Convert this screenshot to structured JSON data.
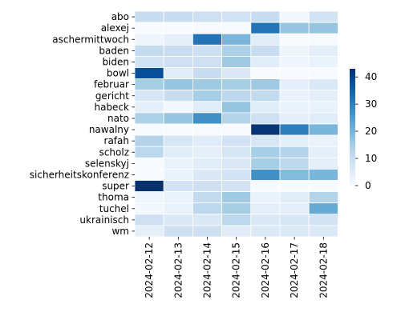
{
  "chart_data": {
    "type": "heatmap",
    "x": [
      "2024-02-12",
      "2024-02-13",
      "2024-02-14",
      "2024-02-15",
      "2024-02-16",
      "2024-02-17",
      "2024-02-18"
    ],
    "y": [
      "abo",
      "alexej",
      "aschermittwoch",
      "baden",
      "biden",
      "bowl",
      "februar",
      "gericht",
      "habeck",
      "nato",
      "nawalny",
      "rafah",
      "scholz",
      "selenskyj",
      "sicherheitskonferenz",
      "super",
      "thoma",
      "tuchel",
      "ukrainisch",
      "wm"
    ],
    "values": [
      [
        10,
        10,
        9,
        8,
        10,
        1,
        8
      ],
      [
        0,
        0,
        0,
        0,
        32,
        17,
        17
      ],
      [
        2,
        4,
        32,
        20,
        5,
        0,
        0
      ],
      [
        11,
        10,
        9,
        14,
        10,
        2,
        4
      ],
      [
        8,
        9,
        9,
        16,
        5,
        2,
        3
      ],
      [
        38,
        5,
        10,
        6,
        0,
        0,
        0
      ],
      [
        15,
        17,
        16,
        15,
        16,
        4,
        6
      ],
      [
        7,
        10,
        15,
        12,
        11,
        3,
        4
      ],
      [
        4,
        1,
        5,
        17,
        5,
        3,
        3
      ],
      [
        14,
        17,
        27,
        13,
        9,
        4,
        5
      ],
      [
        0,
        0,
        0,
        0,
        42,
        30,
        20
      ],
      [
        13,
        7,
        5,
        8,
        7,
        4,
        3
      ],
      [
        12,
        5,
        4,
        7,
        15,
        13,
        4
      ],
      [
        0,
        3,
        5,
        6,
        15,
        12,
        4
      ],
      [
        0,
        3,
        6,
        8,
        27,
        19,
        20
      ],
      [
        43,
        8,
        9,
        8,
        0,
        0,
        0
      ],
      [
        2,
        3,
        11,
        16,
        3,
        5,
        13
      ],
      [
        1,
        3,
        12,
        15,
        4,
        4,
        22
      ],
      [
        9,
        6,
        6,
        12,
        6,
        7,
        8
      ],
      [
        4,
        9,
        9,
        5,
        6,
        6,
        6
      ]
    ],
    "colorbar": {
      "min": 0,
      "max": 43,
      "ticks": [
        0,
        10,
        20,
        30,
        40
      ]
    },
    "colormap": "Blues",
    "colors": {
      "low": "#f7fbff",
      "high": "#08306b",
      "cell_border": "#ffffff"
    }
  }
}
